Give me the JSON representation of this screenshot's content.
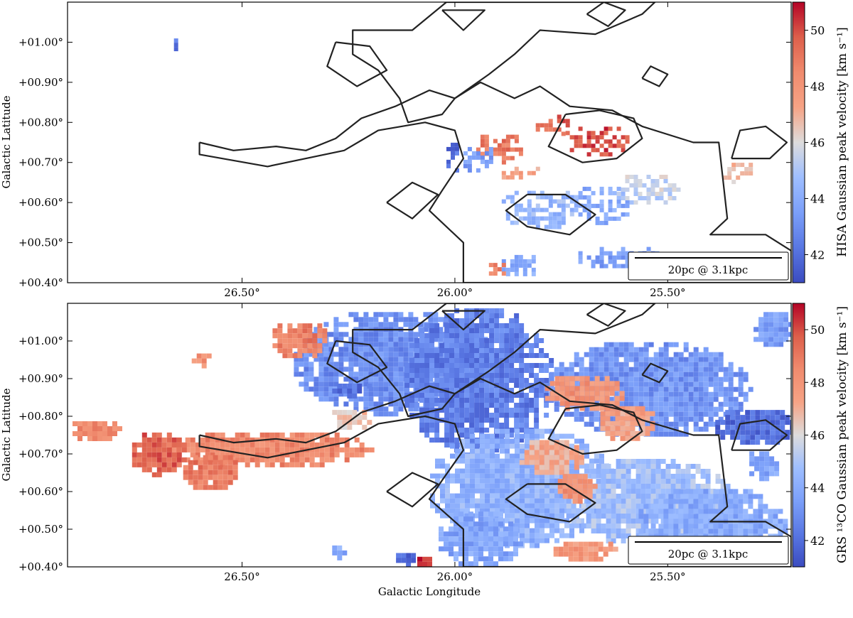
{
  "chart_data": [
    {
      "type": "heatmap",
      "panel": "top",
      "colormap": "coolwarm",
      "xlabel": "",
      "ylabel": "Galactic Latitude",
      "xlim": [
        26.91,
        25.21
      ],
      "ylim": [
        0.4,
        1.1
      ],
      "x_ticks": [
        26.5,
        26.0,
        25.5
      ],
      "x_tick_labels": [
        "26.50°",
        "26.00°",
        "25.50°"
      ],
      "y_ticks": [
        0.4,
        0.5,
        0.6,
        0.7,
        0.8,
        0.9,
        1.0
      ],
      "y_tick_labels": [
        "+00.40°",
        "+00.50°",
        "+00.60°",
        "+00.70°",
        "+00.80°",
        "+00.90°",
        "+01.00°"
      ],
      "colorbar": {
        "label": "HISA Gaussian peak velocity [km s⁻¹]",
        "range": [
          41,
          51
        ],
        "ticks": [
          42,
          44,
          46,
          48,
          50
        ],
        "tick_labels": [
          "42",
          "44",
          "46",
          "48",
          "50"
        ]
      },
      "scalebar": "20pc @ 3.1kpc",
      "regions": [
        {
          "l": 25.67,
          "b": 0.76,
          "rl": 0.08,
          "rb": 0.04,
          "v": 50.0
        },
        {
          "l": 25.9,
          "b": 0.74,
          "rl": 0.06,
          "rb": 0.04,
          "v": 49.0
        },
        {
          "l": 25.78,
          "b": 0.8,
          "rl": 0.05,
          "rb": 0.03,
          "v": 49.5
        },
        {
          "l": 25.85,
          "b": 0.68,
          "rl": 0.05,
          "rb": 0.02,
          "v": 47.5
        },
        {
          "l": 25.95,
          "b": 0.72,
          "rl": 0.04,
          "rb": 0.04,
          "v": 43.5
        },
        {
          "l": 26.01,
          "b": 0.72,
          "rl": 0.02,
          "rb": 0.04,
          "v": 42.0
        },
        {
          "l": 25.8,
          "b": 0.59,
          "rl": 0.1,
          "rb": 0.05,
          "v": 44.5
        },
        {
          "l": 25.66,
          "b": 0.6,
          "rl": 0.07,
          "rb": 0.05,
          "v": 44.0
        },
        {
          "l": 25.55,
          "b": 0.64,
          "rl": 0.08,
          "rb": 0.04,
          "v": 45.5
        },
        {
          "l": 25.62,
          "b": 0.47,
          "rl": 0.1,
          "rb": 0.03,
          "v": 43.5
        },
        {
          "l": 25.85,
          "b": 0.45,
          "rl": 0.05,
          "rb": 0.03,
          "v": 44.0
        },
        {
          "l": 25.34,
          "b": 0.68,
          "rl": 0.04,
          "rb": 0.03,
          "v": 46.5
        },
        {
          "l": 26.65,
          "b": 1.0,
          "rl": 0.02,
          "rb": 0.02,
          "v": 42.5
        },
        {
          "l": 25.9,
          "b": 0.44,
          "rl": 0.03,
          "rb": 0.02,
          "v": 48.5
        }
      ],
      "contours": [
        [
          [
            26.6,
            0.75
          ],
          [
            26.52,
            0.73
          ],
          [
            26.42,
            0.74
          ],
          [
            26.35,
            0.73
          ],
          [
            26.28,
            0.76
          ],
          [
            26.22,
            0.81
          ],
          [
            26.14,
            0.84
          ],
          [
            26.06,
            0.88
          ],
          [
            26.0,
            0.86
          ],
          [
            25.94,
            0.9
          ],
          [
            25.86,
            0.86
          ],
          [
            25.8,
            0.89
          ],
          [
            25.73,
            0.84
          ],
          [
            25.63,
            0.83
          ],
          [
            25.56,
            0.79
          ],
          [
            25.44,
            0.75
          ],
          [
            25.38,
            0.75
          ],
          [
            25.36,
            0.56
          ],
          [
            25.4,
            0.52
          ],
          [
            25.27,
            0.52
          ],
          [
            25.21,
            0.48
          ],
          [
            25.21,
            0.4
          ],
          [
            25.98,
            0.4
          ],
          [
            25.98,
            0.5
          ],
          [
            26.06,
            0.58
          ],
          [
            26.03,
            0.63
          ],
          [
            25.98,
            0.71
          ],
          [
            26.0,
            0.78
          ],
          [
            26.07,
            0.8
          ],
          [
            26.18,
            0.78
          ],
          [
            26.26,
            0.73
          ],
          [
            26.44,
            0.69
          ],
          [
            26.6,
            0.72
          ],
          [
            26.6,
            0.75
          ]
        ],
        [
          [
            26.02,
            1.1
          ],
          [
            26.1,
            1.03
          ],
          [
            26.24,
            1.03
          ],
          [
            26.24,
            0.97
          ],
          [
            26.18,
            0.93
          ],
          [
            26.13,
            0.86
          ],
          [
            26.11,
            0.8
          ],
          [
            26.03,
            0.82
          ],
          [
            26.0,
            0.86
          ],
          [
            25.92,
            0.92
          ],
          [
            25.86,
            0.97
          ],
          [
            25.8,
            1.03
          ],
          [
            25.67,
            1.02
          ],
          [
            25.56,
            1.07
          ],
          [
            25.53,
            1.1
          ],
          [
            26.02,
            1.1
          ]
        ],
        [
          [
            25.74,
            0.82
          ],
          [
            25.66,
            0.83
          ],
          [
            25.58,
            0.81
          ],
          [
            25.56,
            0.76
          ],
          [
            25.62,
            0.71
          ],
          [
            25.7,
            0.7
          ],
          [
            25.78,
            0.74
          ],
          [
            25.74,
            0.82
          ]
        ],
        [
          [
            26.28,
            1.0
          ],
          [
            26.2,
            0.99
          ],
          [
            26.16,
            0.93
          ],
          [
            26.23,
            0.89
          ],
          [
            26.3,
            0.94
          ],
          [
            26.28,
            1.0
          ]
        ],
        [
          [
            26.03,
            1.08
          ],
          [
            25.98,
            1.03
          ],
          [
            25.93,
            1.08
          ],
          [
            26.03,
            1.08
          ]
        ],
        [
          [
            25.83,
            0.62
          ],
          [
            25.74,
            0.62
          ],
          [
            25.67,
            0.57
          ],
          [
            25.73,
            0.52
          ],
          [
            25.83,
            0.54
          ],
          [
            25.88,
            0.58
          ],
          [
            25.83,
            0.62
          ]
        ],
        [
          [
            25.69,
            1.07
          ],
          [
            25.64,
            1.04
          ],
          [
            25.6,
            1.08
          ],
          [
            25.65,
            1.1
          ],
          [
            25.69,
            1.07
          ]
        ],
        [
          [
            25.35,
            0.71
          ],
          [
            25.26,
            0.71
          ],
          [
            25.22,
            0.75
          ],
          [
            25.27,
            0.79
          ],
          [
            25.33,
            0.78
          ],
          [
            25.35,
            0.71
          ]
        ],
        [
          [
            25.56,
            0.91
          ],
          [
            25.52,
            0.89
          ],
          [
            25.5,
            0.92
          ],
          [
            25.54,
            0.94
          ],
          [
            25.56,
            0.91
          ]
        ],
        [
          [
            26.16,
            0.6
          ],
          [
            26.1,
            0.56
          ],
          [
            26.04,
            0.62
          ],
          [
            26.1,
            0.65
          ],
          [
            26.16,
            0.6
          ]
        ]
      ]
    },
    {
      "type": "heatmap",
      "panel": "bottom",
      "colormap": "coolwarm",
      "xlabel": "Galactic Longitude",
      "ylabel": "Galactic Latitude",
      "xlim": [
        26.91,
        25.21
      ],
      "ylim": [
        0.4,
        1.1
      ],
      "x_ticks": [
        26.5,
        26.0,
        25.5
      ],
      "x_tick_labels": [
        "26.50°",
        "26.00°",
        "25.50°"
      ],
      "y_ticks": [
        0.4,
        0.5,
        0.6,
        0.7,
        0.8,
        0.9,
        1.0
      ],
      "y_tick_labels": [
        "+00.40°",
        "+00.50°",
        "+00.60°",
        "+00.70°",
        "+00.80°",
        "+00.90°",
        "+01.00°"
      ],
      "colorbar": {
        "label": "GRS ¹³CO Gaussian peak velocity [km s⁻¹]",
        "range": [
          41,
          51
        ],
        "ticks": [
          42,
          44,
          46,
          48,
          50
        ],
        "tick_labels": [
          "42",
          "44",
          "46",
          "48",
          "50"
        ]
      },
      "scalebar": "20pc @ 3.1kpc",
      "regions": [
        {
          "l": 26.15,
          "b": 0.95,
          "rl": 0.24,
          "rb": 0.14,
          "v": 43.0
        },
        {
          "l": 25.95,
          "b": 0.9,
          "rl": 0.18,
          "rb": 0.2,
          "v": 42.5
        },
        {
          "l": 25.55,
          "b": 0.88,
          "rl": 0.24,
          "rb": 0.13,
          "v": 43.2
        },
        {
          "l": 25.3,
          "b": 0.78,
          "rl": 0.1,
          "rb": 0.05,
          "v": 42.0
        },
        {
          "l": 25.85,
          "b": 0.62,
          "rl": 0.22,
          "rb": 0.16,
          "v": 44.3
        },
        {
          "l": 25.55,
          "b": 0.58,
          "rl": 0.2,
          "rb": 0.12,
          "v": 44.8
        },
        {
          "l": 25.4,
          "b": 0.52,
          "rl": 0.18,
          "rb": 0.1,
          "v": 44.0
        },
        {
          "l": 25.95,
          "b": 0.48,
          "rl": 0.1,
          "rb": 0.08,
          "v": 43.8
        },
        {
          "l": 25.7,
          "b": 0.87,
          "rl": 0.1,
          "rb": 0.05,
          "v": 48.0
        },
        {
          "l": 25.6,
          "b": 0.79,
          "rl": 0.07,
          "rb": 0.05,
          "v": 47.5
        },
        {
          "l": 25.78,
          "b": 0.7,
          "rl": 0.08,
          "rb": 0.05,
          "v": 47.2
        },
        {
          "l": 25.72,
          "b": 0.62,
          "rl": 0.05,
          "rb": 0.04,
          "v": 48.0
        },
        {
          "l": 25.7,
          "b": 0.45,
          "rl": 0.08,
          "rb": 0.03,
          "v": 47.8
        },
        {
          "l": 26.44,
          "b": 0.72,
          "rl": 0.24,
          "rb": 0.05,
          "v": 48.5
        },
        {
          "l": 26.7,
          "b": 0.71,
          "rl": 0.07,
          "rb": 0.06,
          "v": 49.5
        },
        {
          "l": 26.58,
          "b": 0.66,
          "rl": 0.07,
          "rb": 0.05,
          "v": 49.0
        },
        {
          "l": 26.85,
          "b": 0.77,
          "rl": 0.06,
          "rb": 0.03,
          "v": 48.3
        },
        {
          "l": 26.37,
          "b": 1.01,
          "rl": 0.07,
          "rb": 0.05,
          "v": 48.8
        },
        {
          "l": 26.25,
          "b": 0.8,
          "rl": 0.05,
          "rb": 0.03,
          "v": 46.5
        },
        {
          "l": 26.25,
          "b": 0.88,
          "rl": 0.05,
          "rb": 0.02,
          "v": 42.0
        },
        {
          "l": 25.28,
          "b": 0.68,
          "rl": 0.04,
          "rb": 0.04,
          "v": 43.8
        },
        {
          "l": 25.26,
          "b": 1.04,
          "rl": 0.05,
          "rb": 0.05,
          "v": 43.5
        },
        {
          "l": 26.12,
          "b": 0.43,
          "rl": 0.03,
          "rb": 0.02,
          "v": 42.0
        },
        {
          "l": 26.08,
          "b": 0.42,
          "rl": 0.02,
          "rb": 0.02,
          "v": 50.5
        },
        {
          "l": 26.28,
          "b": 0.45,
          "rl": 0.02,
          "rb": 0.02,
          "v": 44.0
        },
        {
          "l": 26.6,
          "b": 0.96,
          "rl": 0.03,
          "rb": 0.02,
          "v": 48.0
        }
      ],
      "contours": [
        [
          [
            26.6,
            0.75
          ],
          [
            26.52,
            0.73
          ],
          [
            26.42,
            0.74
          ],
          [
            26.35,
            0.73
          ],
          [
            26.28,
            0.76
          ],
          [
            26.22,
            0.81
          ],
          [
            26.14,
            0.84
          ],
          [
            26.06,
            0.88
          ],
          [
            26.0,
            0.86
          ],
          [
            25.94,
            0.9
          ],
          [
            25.86,
            0.86
          ],
          [
            25.8,
            0.89
          ],
          [
            25.73,
            0.84
          ],
          [
            25.63,
            0.83
          ],
          [
            25.56,
            0.79
          ],
          [
            25.44,
            0.75
          ],
          [
            25.38,
            0.75
          ],
          [
            25.36,
            0.56
          ],
          [
            25.4,
            0.52
          ],
          [
            25.27,
            0.52
          ],
          [
            25.21,
            0.48
          ],
          [
            25.21,
            0.4
          ],
          [
            25.98,
            0.4
          ],
          [
            25.98,
            0.5
          ],
          [
            26.06,
            0.58
          ],
          [
            26.03,
            0.63
          ],
          [
            25.98,
            0.71
          ],
          [
            26.0,
            0.78
          ],
          [
            26.07,
            0.8
          ],
          [
            26.18,
            0.78
          ],
          [
            26.26,
            0.73
          ],
          [
            26.44,
            0.69
          ],
          [
            26.6,
            0.72
          ],
          [
            26.6,
            0.75
          ]
        ],
        [
          [
            26.02,
            1.1
          ],
          [
            26.1,
            1.03
          ],
          [
            26.24,
            1.03
          ],
          [
            26.24,
            0.97
          ],
          [
            26.18,
            0.93
          ],
          [
            26.13,
            0.86
          ],
          [
            26.11,
            0.8
          ],
          [
            26.03,
            0.82
          ],
          [
            26.0,
            0.86
          ],
          [
            25.92,
            0.92
          ],
          [
            25.86,
            0.97
          ],
          [
            25.8,
            1.03
          ],
          [
            25.67,
            1.02
          ],
          [
            25.56,
            1.07
          ],
          [
            25.53,
            1.1
          ],
          [
            26.02,
            1.1
          ]
        ],
        [
          [
            25.74,
            0.82
          ],
          [
            25.66,
            0.83
          ],
          [
            25.58,
            0.81
          ],
          [
            25.56,
            0.76
          ],
          [
            25.62,
            0.71
          ],
          [
            25.7,
            0.7
          ],
          [
            25.78,
            0.74
          ],
          [
            25.74,
            0.82
          ]
        ],
        [
          [
            26.28,
            1.0
          ],
          [
            26.2,
            0.99
          ],
          [
            26.16,
            0.93
          ],
          [
            26.23,
            0.89
          ],
          [
            26.3,
            0.94
          ],
          [
            26.28,
            1.0
          ]
        ],
        [
          [
            26.03,
            1.08
          ],
          [
            25.98,
            1.03
          ],
          [
            25.93,
            1.08
          ],
          [
            26.03,
            1.08
          ]
        ],
        [
          [
            25.83,
            0.62
          ],
          [
            25.74,
            0.62
          ],
          [
            25.67,
            0.57
          ],
          [
            25.73,
            0.52
          ],
          [
            25.83,
            0.54
          ],
          [
            25.88,
            0.58
          ],
          [
            25.83,
            0.62
          ]
        ],
        [
          [
            25.69,
            1.07
          ],
          [
            25.64,
            1.04
          ],
          [
            25.6,
            1.08
          ],
          [
            25.65,
            1.1
          ],
          [
            25.69,
            1.07
          ]
        ],
        [
          [
            25.35,
            0.71
          ],
          [
            25.26,
            0.71
          ],
          [
            25.22,
            0.75
          ],
          [
            25.27,
            0.79
          ],
          [
            25.33,
            0.78
          ],
          [
            25.35,
            0.71
          ]
        ],
        [
          [
            25.56,
            0.91
          ],
          [
            25.52,
            0.89
          ],
          [
            25.5,
            0.92
          ],
          [
            25.54,
            0.94
          ],
          [
            25.56,
            0.91
          ]
        ],
        [
          [
            26.16,
            0.6
          ],
          [
            26.1,
            0.56
          ],
          [
            26.04,
            0.62
          ],
          [
            26.1,
            0.65
          ],
          [
            26.16,
            0.6
          ]
        ]
      ]
    }
  ]
}
